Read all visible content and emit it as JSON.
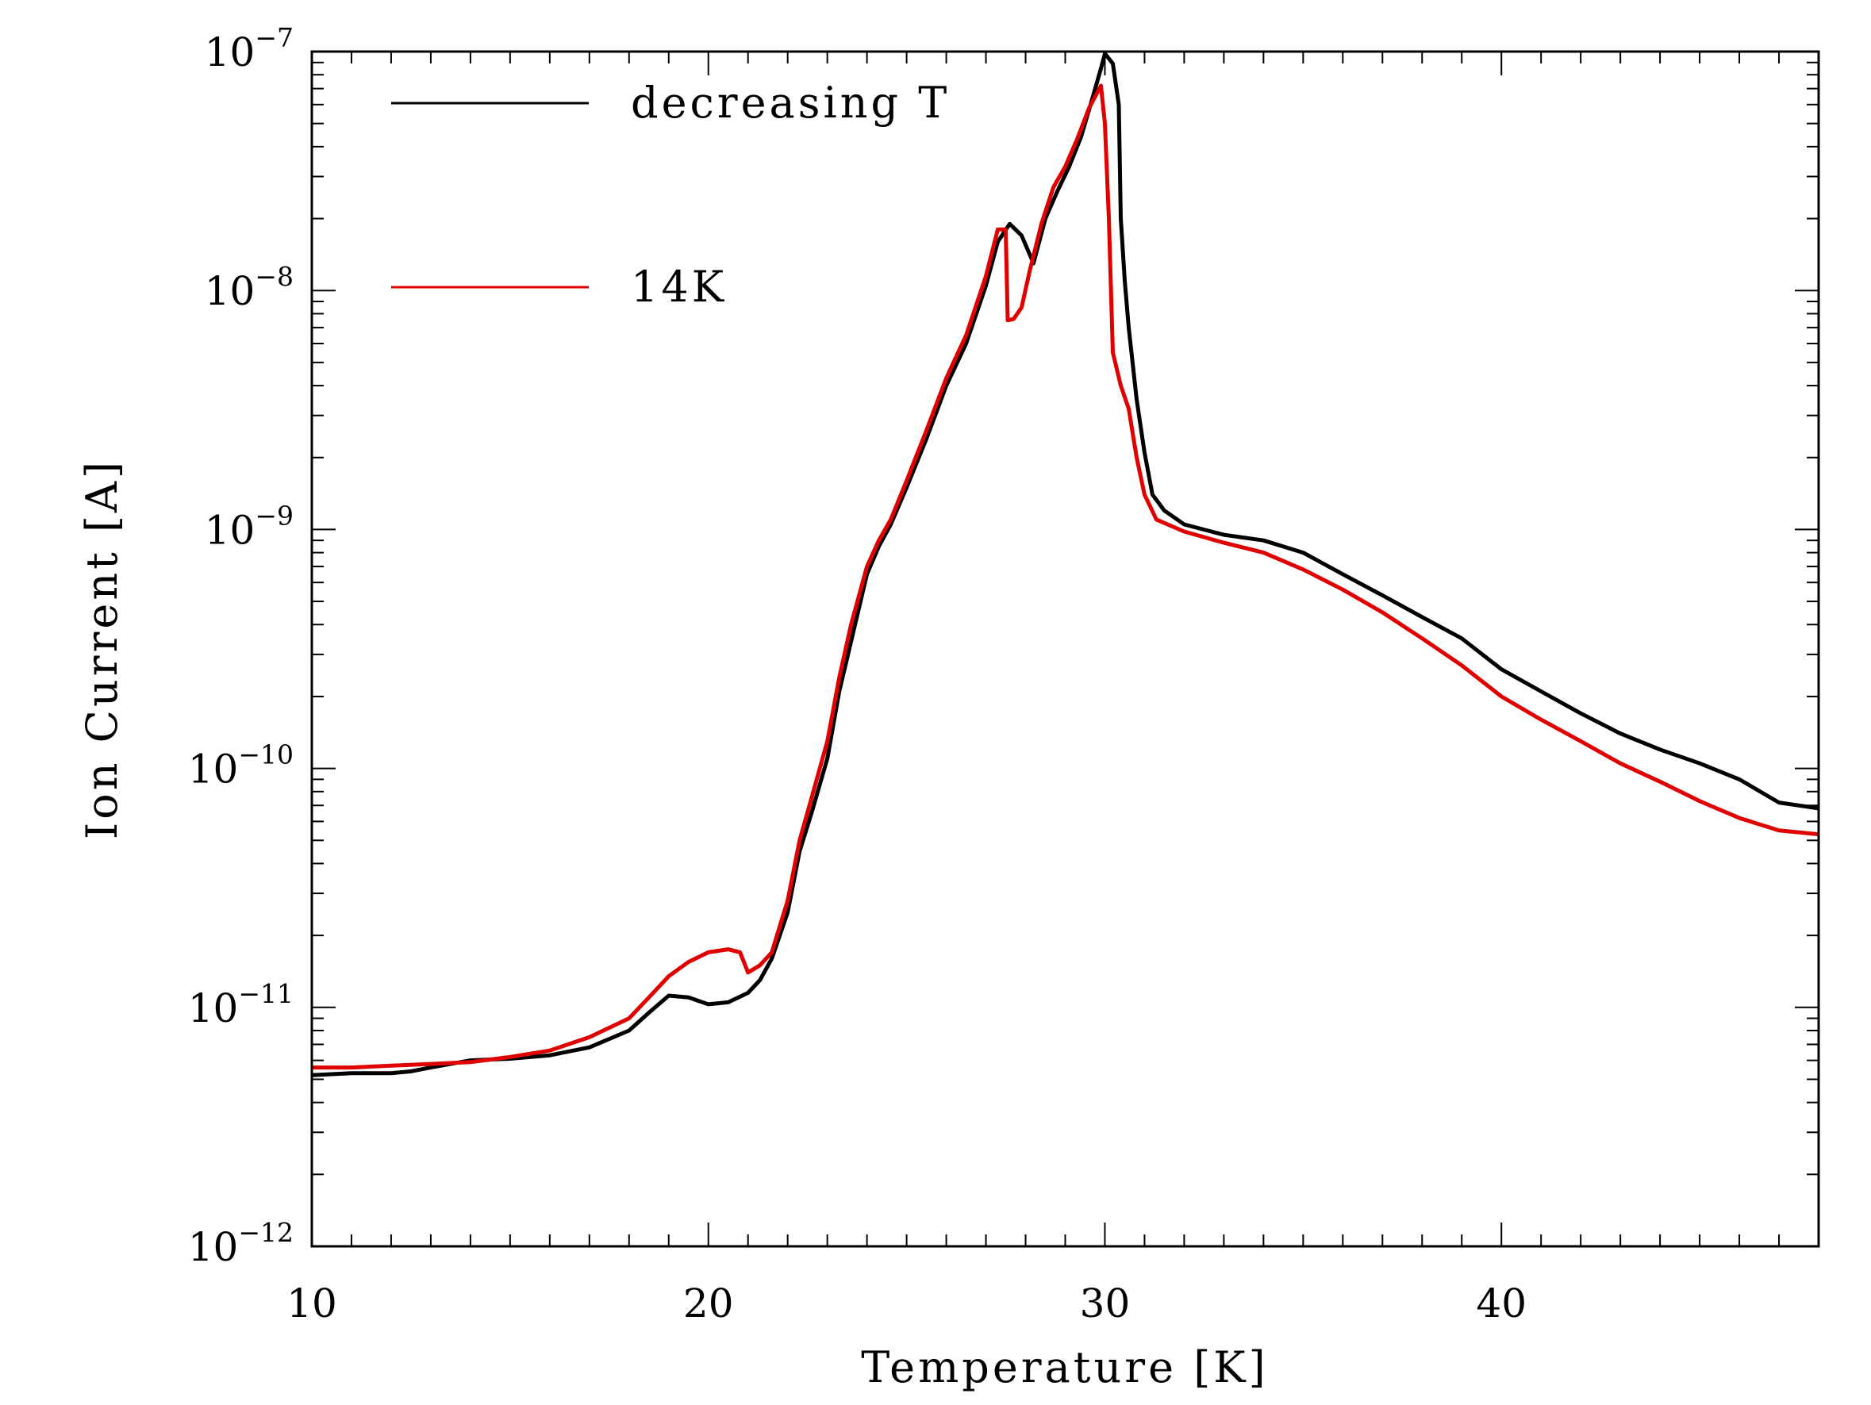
{
  "chart_data": {
    "type": "line",
    "xlabel": "Temperature [K]",
    "ylabel": "Ion Current [A]",
    "xlim": [
      10,
      48
    ],
    "ylim": [
      1e-12,
      1e-07
    ],
    "yscale": "log",
    "x_ticks": [
      {
        "value": 10,
        "label": "10"
      },
      {
        "value": 20,
        "label": "20"
      },
      {
        "value": 30,
        "label": "30"
      },
      {
        "value": 40,
        "label": "40"
      }
    ],
    "y_ticks": [
      {
        "value": 1e-12,
        "base": "10",
        "exponent": "−12"
      },
      {
        "value": 1e-11,
        "base": "10",
        "exponent": "−11"
      },
      {
        "value": 1e-10,
        "base": "10",
        "exponent": "−10"
      },
      {
        "value": 1e-09,
        "base": "10",
        "exponent": "−9"
      },
      {
        "value": 1e-08,
        "base": "10",
        "exponent": "−8"
      },
      {
        "value": 1e-07,
        "base": "10",
        "exponent": "−7"
      }
    ],
    "legend_position": "top-left",
    "series": [
      {
        "name": "decreasing T",
        "color": "#000000",
        "x": [
          10,
          11,
          12,
          12.5,
          13,
          14,
          15,
          16,
          17,
          18,
          18.5,
          19,
          19.5,
          20,
          20.5,
          21,
          21.3,
          21.6,
          22,
          22.3,
          22.6,
          23,
          23.3,
          23.6,
          24,
          24.3,
          24.6,
          25,
          25.5,
          26,
          26.5,
          27,
          27.3,
          27.6,
          27.9,
          28.2,
          28.5,
          28.8,
          29.1,
          29.4,
          29.7,
          29.9,
          30.0,
          30.2,
          30.35,
          30.4,
          30.5,
          30.6,
          30.8,
          31.0,
          31.2,
          31.5,
          32,
          33,
          34,
          35,
          36,
          37,
          38,
          39,
          40,
          41,
          42,
          43,
          44,
          45,
          46,
          47,
          48
        ],
        "y": [
          5.2e-12,
          5.3e-12,
          5.3e-12,
          5.4e-12,
          5.6e-12,
          6e-12,
          6.1e-12,
          6.3e-12,
          6.8e-12,
          8e-12,
          9.5e-12,
          1.12e-11,
          1.1e-11,
          1.03e-11,
          1.05e-11,
          1.15e-11,
          1.3e-11,
          1.6e-11,
          2.5e-11,
          4.5e-11,
          6.5e-11,
          1.1e-10,
          2.1e-10,
          3.4e-10,
          6.5e-10,
          8.5e-10,
          1.05e-09,
          1.5e-09,
          2.4e-09,
          4e-09,
          6e-09,
          1.05e-08,
          1.6e-08,
          1.9e-08,
          1.7e-08,
          1.3e-08,
          2e-08,
          2.6e-08,
          3.3e-08,
          4.4e-08,
          6.5e-08,
          8.5e-08,
          9.8e-08,
          8.9e-08,
          6e-08,
          2e-08,
          1.1e-08,
          7e-09,
          3.5e-09,
          2.1e-09,
          1.4e-09,
          1.2e-09,
          1.05e-09,
          9.5e-10,
          9e-10,
          8e-10,
          6.5e-10,
          5.3e-10,
          4.3e-10,
          3.5e-10,
          2.6e-10,
          2.1e-10,
          1.7e-10,
          1.4e-10,
          1.2e-10,
          1.05e-10,
          9e-11,
          7.2e-11,
          6.8e-11
        ]
      },
      {
        "name": "14K",
        "color": "#e00000",
        "x": [
          10,
          11,
          12,
          13,
          14,
          15,
          16,
          17,
          18,
          18.5,
          19,
          19.5,
          20,
          20.5,
          20.8,
          21.0,
          21.3,
          21.6,
          22,
          22.3,
          22.6,
          23,
          23.3,
          23.6,
          24,
          24.3,
          24.6,
          25,
          25.5,
          26,
          26.5,
          27,
          27.3,
          27.5,
          27.55,
          27.7,
          27.9,
          28.1,
          28.4,
          28.7,
          29.0,
          29.3,
          29.6,
          29.9,
          30.0,
          30.1,
          30.2,
          30.4,
          30.6,
          30.8,
          31.0,
          31.3,
          32,
          33,
          34,
          35,
          36,
          37,
          38,
          39,
          40,
          41,
          42,
          43,
          44,
          45,
          46,
          47,
          48
        ],
        "y": [
          5.6e-12,
          5.6e-12,
          5.7e-12,
          5.8e-12,
          5.9e-12,
          6.2e-12,
          6.6e-12,
          7.5e-12,
          9e-12,
          1.1e-11,
          1.35e-11,
          1.55e-11,
          1.7e-11,
          1.75e-11,
          1.7e-11,
          1.4e-11,
          1.5e-11,
          1.7e-11,
          2.8e-11,
          5e-11,
          7.5e-11,
          1.3e-10,
          2.4e-10,
          4e-10,
          7e-10,
          9e-10,
          1.1e-09,
          1.6e-09,
          2.6e-09,
          4.3e-09,
          6.5e-09,
          1.15e-08,
          1.8e-08,
          1.8e-08,
          7.5e-09,
          7.6e-09,
          8.5e-09,
          1.2e-08,
          1.9e-08,
          2.7e-08,
          3.3e-08,
          4.3e-08,
          5.8e-08,
          7.2e-08,
          5e-08,
          2e-08,
          5.5e-09,
          4e-09,
          3.2e-09,
          2e-09,
          1.4e-09,
          1.1e-09,
          9.8e-10,
          8.8e-10,
          8e-10,
          6.8e-10,
          5.6e-10,
          4.5e-10,
          3.5e-10,
          2.7e-10,
          2e-10,
          1.6e-10,
          1.3e-10,
          1.05e-10,
          8.8e-11,
          7.3e-11,
          6.2e-11,
          5.5e-11,
          5.3e-11
        ]
      }
    ]
  }
}
